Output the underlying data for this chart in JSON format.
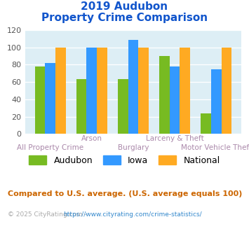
{
  "title_line1": "2019 Audubon",
  "title_line2": "Property Crime Comparison",
  "categories": [
    "All Property Crime",
    "Arson",
    "Burglary",
    "Larceny & Theft",
    "Motor Vehicle Theft"
  ],
  "audubon": [
    78,
    63,
    63,
    90,
    24
  ],
  "iowa": [
    82,
    100,
    109,
    78,
    75
  ],
  "national": [
    100,
    100,
    100,
    100,
    100
  ],
  "audubon_color": "#77bb22",
  "iowa_color": "#3399ff",
  "national_color": "#ffaa22",
  "ylim": [
    0,
    120
  ],
  "yticks": [
    0,
    20,
    40,
    60,
    80,
    100,
    120
  ],
  "plot_bg": "#ddeef5",
  "title_color": "#1155cc",
  "note_color": "#cc6600",
  "copyright_color": "#aaaaaa",
  "url_color": "#3388cc",
  "xlabel_color": "#aa88aa",
  "note": "Compared to U.S. average. (U.S. average equals 100)",
  "copyright_text": "© 2025 CityRating.com - ",
  "copyright_url": "https://www.cityrating.com/crime-statistics/"
}
